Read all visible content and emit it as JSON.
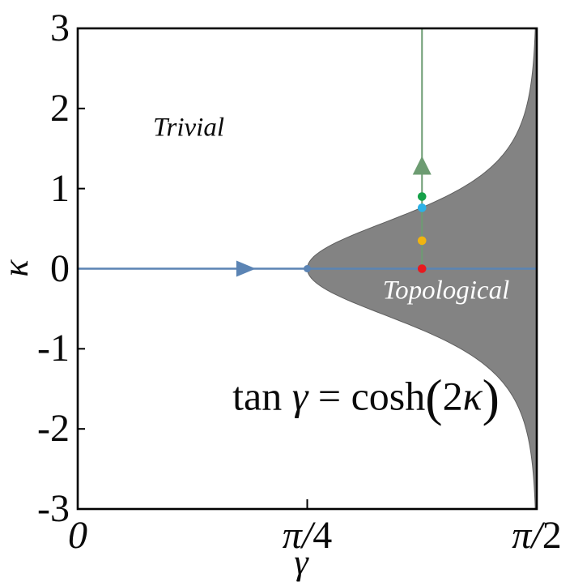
{
  "figure": {
    "xlabel": "γ",
    "ylabel": "κ",
    "regions": {
      "trivial": "Trivial",
      "topological": "Topological"
    },
    "equation": {
      "text": "tan γ = cosh(2κ)",
      "parts": [
        {
          "text": "tan ",
          "style": "roman"
        },
        {
          "text": "γ",
          "style": "italic"
        },
        {
          "text": " = ",
          "style": "roman"
        },
        {
          "text": "cosh",
          "style": "roman"
        },
        {
          "text": "(",
          "style": "paren"
        },
        {
          "text": "2",
          "style": "roman"
        },
        {
          "text": "κ",
          "style": "italic"
        },
        {
          "text": ")",
          "style": "paren"
        }
      ]
    }
  },
  "chart_data": {
    "type": "area",
    "title": "",
    "xlabel": "γ",
    "ylabel": "κ",
    "xlim_rad": [
      0,
      1.5708
    ],
    "ylim": [
      -3,
      3
    ],
    "xticks": [
      {
        "value_rad": 0,
        "label": "0"
      },
      {
        "value_rad": 0.7854,
        "label": "π/4"
      },
      {
        "value_rad": 1.5708,
        "label": "π/2"
      }
    ],
    "xtick_marks_rad": [
      0.7854
    ],
    "yticks": [
      {
        "value": 3,
        "label": "3"
      },
      {
        "value": 2,
        "label": "2"
      },
      {
        "value": 1,
        "label": "1"
      },
      {
        "value": 0,
        "label": "0"
      },
      {
        "value": -1,
        "label": "-1"
      },
      {
        "value": -2,
        "label": "-2"
      },
      {
        "value": -3,
        "label": "-3"
      }
    ],
    "boundary": {
      "equation_display": "tan γ = cosh(2κ)",
      "relation": "gamma = arctan(cosh(2*kappa))",
      "tip_point": {
        "gamma_rad": 0.7854,
        "kappa": 0
      },
      "shaded_region": "Topological (between curve and γ = π/2)",
      "unshaded_region": "Trivial"
    },
    "trajectories": [
      {
        "name": "horizontal-sweep",
        "kappa": 0,
        "gamma_range_rad": [
          0,
          1.5708
        ],
        "arrow_gamma_rad": 0.576,
        "arrow_direction": "right",
        "endpoint_dot": {
          "gamma_rad": 0.7854,
          "kappa": 0
        },
        "color": "#5b84b4"
      },
      {
        "name": "vertical-sweep",
        "gamma_rad": 1.1781,
        "kappa_range": [
          0,
          3
        ],
        "arrow_kappa": 1.29,
        "arrow_direction": "up",
        "color": "#6d9c72"
      }
    ],
    "markers": [
      {
        "name": "red-dot",
        "gamma_rad": 1.1781,
        "kappa": 0.0,
        "color": "#e8191f"
      },
      {
        "name": "orange-dot",
        "gamma_rad": 1.1781,
        "kappa": 0.35,
        "color": "#f0b410"
      },
      {
        "name": "cyan-dot",
        "gamma_rad": 1.1781,
        "kappa": 0.76,
        "color": "#2cb1e6"
      },
      {
        "name": "green-dot",
        "gamma_rad": 1.1781,
        "kappa": 0.9,
        "color": "#16a149"
      }
    ],
    "colors": {
      "region_fill": "#838383",
      "region_edge": "#5f5f5f",
      "frame": "#000000",
      "horizontal_line": "#5b84b4",
      "vertical_line": "#6d9c72"
    },
    "layout_hints": {
      "grid": false,
      "legend": false,
      "frame_on": true
    }
  }
}
